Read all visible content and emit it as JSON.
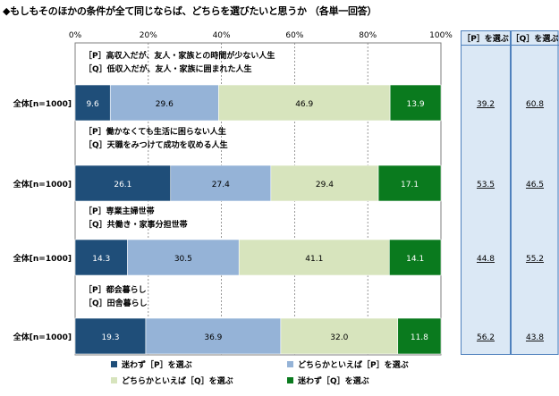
{
  "title": "◆もしもそのほかの条件が全て同じならば、どちらを選びたいと思うか （各単一回答）",
  "summary_headers": [
    "［P］を選ぶ",
    "［Q］を選ぶ"
  ],
  "colors": {
    "p_strong": "#1f4e79",
    "p_weak": "#95b3d7",
    "q_weak": "#d7e4bd",
    "q_strong": "#0a7a1e",
    "summary_bg": "#dbe8f5",
    "summary_border": "#4f81bd"
  },
  "chart_data": {
    "type": "bar",
    "orientation": "horizontal",
    "stacked": true,
    "xlim": [
      0,
      100
    ],
    "tick_labels": [
      "0%",
      "20%",
      "40%",
      "60%",
      "80%",
      "100%"
    ],
    "categories": [
      {
        "label": "全体[n=1000]",
        "question_p": "［P］高収入だが、友人・家族との時間が少ない人生",
        "question_q": "［Q］低収入だが、友人・家族に囲まれた人生"
      },
      {
        "label": "全体[n=1000]",
        "question_p": "［P］働かなくても生活に困らない人生",
        "question_q": "［Q］天職をみつけて成功を収める人生"
      },
      {
        "label": "全体[n=1000]",
        "question_p": "［P］専業主婦世帯",
        "question_q": "［Q］共働き・家事分担世帯"
      },
      {
        "label": "全体[n=1000]",
        "question_p": "［P］都会暮らし",
        "question_q": "［Q］田舎暮らし"
      }
    ],
    "series": [
      {
        "name": "迷わず［P］を選ぶ",
        "values": [
          9.6,
          26.1,
          14.3,
          19.3
        ]
      },
      {
        "name": "どちらかといえば［P］を選ぶ",
        "values": [
          29.6,
          27.4,
          30.5,
          36.9
        ]
      },
      {
        "name": "どちらかといえば［Q］を選ぶ",
        "values": [
          46.9,
          29.4,
          41.1,
          32.0
        ]
      },
      {
        "name": "迷わず［Q］を選ぶ",
        "values": [
          13.9,
          17.1,
          14.1,
          11.8
        ]
      }
    ],
    "summary": {
      "p": [
        39.2,
        53.5,
        44.8,
        56.2
      ],
      "q": [
        60.8,
        46.5,
        55.2,
        43.8
      ]
    },
    "grid": true,
    "legend_position": "bottom"
  }
}
